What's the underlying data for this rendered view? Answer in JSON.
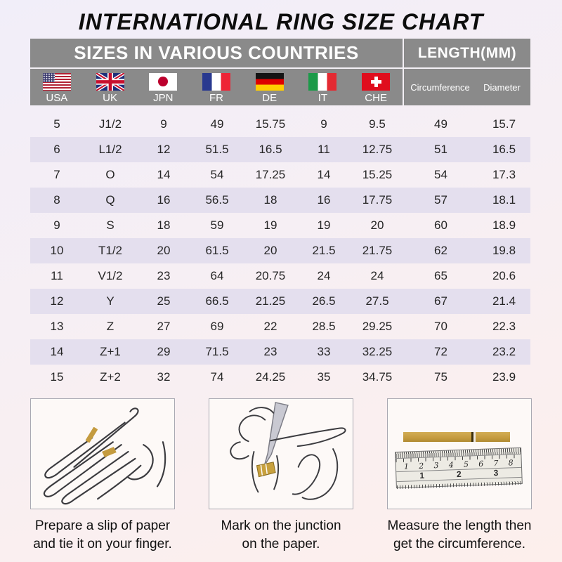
{
  "chart_data": {
    "type": "table",
    "title": "INTERNATIONAL RING SIZE CHART",
    "header_groups": [
      {
        "label": "SIZES IN VARIOUS COUNTRIES",
        "span": 7
      },
      {
        "label": "LENGTH(MM)",
        "span": 2
      }
    ],
    "columns": [
      "USA",
      "UK",
      "JPN",
      "FR",
      "DE",
      "IT",
      "CHE",
      "Circumference",
      "Diameter"
    ],
    "rows": [
      [
        "5",
        "J1/2",
        "9",
        "49",
        "15.75",
        "9",
        "9.5",
        "49",
        "15.7"
      ],
      [
        "6",
        "L1/2",
        "12",
        "51.5",
        "16.5",
        "11",
        "12.75",
        "51",
        "16.5"
      ],
      [
        "7",
        "O",
        "14",
        "54",
        "17.25",
        "14",
        "15.25",
        "54",
        "17.3"
      ],
      [
        "8",
        "Q",
        "16",
        "56.5",
        "18",
        "16",
        "17.75",
        "57",
        "18.1"
      ],
      [
        "9",
        "S",
        "18",
        "59",
        "19",
        "19",
        "20",
        "60",
        "18.9"
      ],
      [
        "10",
        "T1/2",
        "20",
        "61.5",
        "20",
        "21.5",
        "21.75",
        "62",
        "19.8"
      ],
      [
        "11",
        "V1/2",
        "23",
        "64",
        "20.75",
        "24",
        "24",
        "65",
        "20.6"
      ],
      [
        "12",
        "Y",
        "25",
        "66.5",
        "21.25",
        "26.5",
        "27.5",
        "67",
        "21.4"
      ],
      [
        "13",
        "Z",
        "27",
        "69",
        "22",
        "28.5",
        "29.25",
        "70",
        "22.3"
      ],
      [
        "14",
        "Z+1",
        "29",
        "71.5",
        "23",
        "33",
        "32.25",
        "72",
        "23.2"
      ],
      [
        "15",
        "Z+2",
        "32",
        "74",
        "24.25",
        "35",
        "34.75",
        "75",
        "23.9"
      ]
    ]
  },
  "flag_icons": [
    "usa-flag",
    "uk-flag",
    "japan-flag",
    "france-flag",
    "germany-flag",
    "italy-flag",
    "switzerland-flag"
  ],
  "instructions": [
    {
      "icon": "hand-with-paper-strip-sketch",
      "line1": "Prepare a slip of paper",
      "line2": "and tie it on your finger."
    },
    {
      "icon": "marking-pen-on-finger-sketch",
      "line1": "Mark on the junction",
      "line2": "on the paper."
    },
    {
      "icon": "ruler-measuring-strip",
      "line1": "Measure the length then",
      "line2": "get the circumference."
    }
  ],
  "ruler": {
    "cm": [
      "1",
      "2",
      "3",
      "4",
      "5",
      "6",
      "7",
      "8"
    ],
    "inch": [
      "1",
      "2",
      "3"
    ]
  },
  "colors": {
    "header_gray": "#8a8a8a",
    "row_alt": "#e4dfee",
    "gold_strip": "#c49b3f",
    "header_text": "#ffffff",
    "body_text": "#262626"
  }
}
